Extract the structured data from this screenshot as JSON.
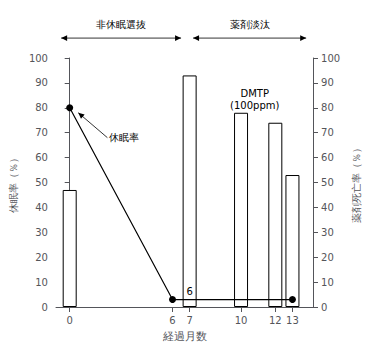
{
  "chart_data": {
    "type": "bar",
    "xlabel": "経過月数",
    "ylabel": "休眠率（％）",
    "y2label": "薬剤死亡率（％）",
    "series": [
      {
        "type": "bar",
        "x": [
          0,
          7,
          10,
          12,
          13
        ],
        "values": [
          47,
          93,
          78,
          74,
          53
        ],
        "color": "white"
      },
      {
        "type": "line",
        "x": [
          0,
          6,
          13
        ],
        "values": [
          80,
          3,
          3
        ],
        "color": "black",
        "marker": "circle"
      }
    ],
    "xlim": [
      -0.8,
      14.2
    ],
    "xticks": [
      0,
      6,
      7,
      10,
      12,
      13
    ],
    "ylim": [
      0,
      100
    ],
    "yticks": [
      0,
      10,
      20,
      30,
      40,
      50,
      60,
      70,
      80,
      90,
      100
    ],
    "y2lim": [
      0,
      100
    ],
    "y2ticks": [
      0,
      10,
      20,
      30,
      40,
      50,
      60,
      70,
      80,
      90,
      100
    ],
    "grid": false,
    "annotations": [
      "休眠率",
      "6",
      "DMTP\n(100ppm)",
      "非休眠選抜",
      "薬剤淡汰"
    ]
  }
}
